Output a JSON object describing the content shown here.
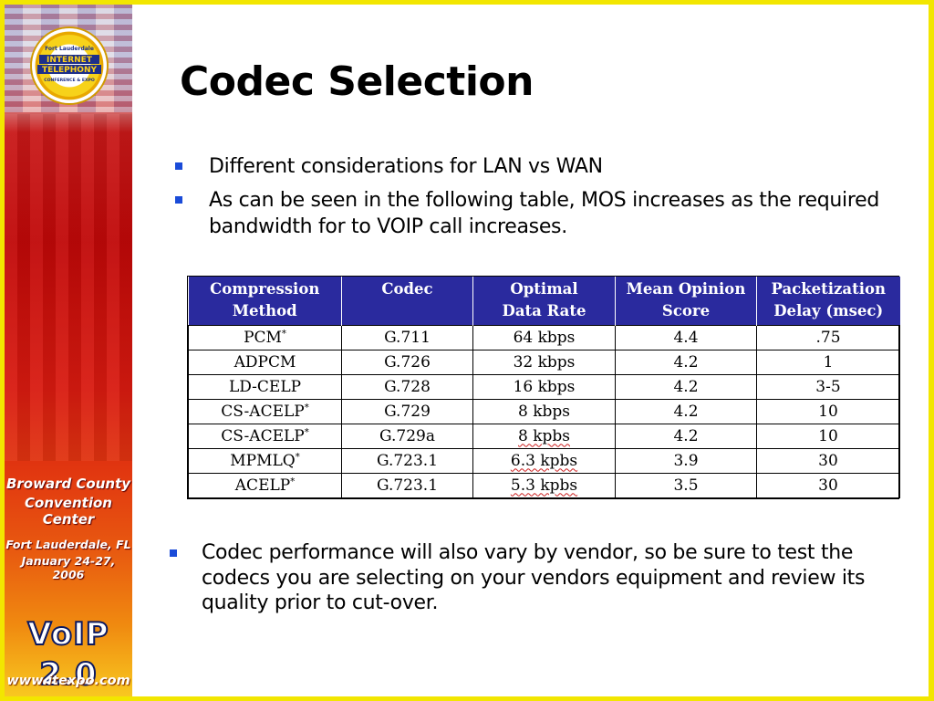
{
  "sidebar": {
    "badge": {
      "line1": "Fort Lauderdale",
      "line2": "INTERNET",
      "line3": "TELEPHONY",
      "line4": "CONFERENCE & EXPO"
    },
    "venue_line1": "Broward County",
    "venue_line2": "Convention Center",
    "city": "Fort Lauderdale, FL",
    "dates": "January 24-27, 2006",
    "logo_main": "VoIP",
    "logo_version": "2.0",
    "website": "www.itexpo.com"
  },
  "slide": {
    "title": "Codec Selection",
    "bullets_top": [
      "Different considerations for LAN vs WAN",
      "As can be seen in the following table, MOS increases as the required bandwidth for to VOIP call increases."
    ],
    "bullets_bottom": [
      "Codec performance will also vary by vendor, so be sure to test the codecs you are selecting on your vendors equipment and review its quality prior to cut-over."
    ]
  },
  "table": {
    "headers": [
      [
        "Compression",
        "Method"
      ],
      [
        "Codec",
        ""
      ],
      [
        "Optimal",
        "Data Rate"
      ],
      [
        "Mean Opinion",
        "Score"
      ],
      [
        "Packetization",
        "Delay (msec)"
      ]
    ],
    "rows": [
      {
        "method": "PCM",
        "mark": "*",
        "codec": "G.711",
        "rate": "64 kbps",
        "mos": "4.4",
        "delay": ".75"
      },
      {
        "method": "ADPCM",
        "mark": "",
        "codec": "G.726",
        "rate": "32 kbps",
        "mos": "4.2",
        "delay": "1"
      },
      {
        "method": "LD-CELP",
        "mark": "",
        "codec": "G.728",
        "rate": "16 kbps",
        "mos": "4.2",
        "delay": "3-5"
      },
      {
        "method": "CS-ACELP",
        "mark": "*",
        "codec": "G.729",
        "rate": "8 kbps",
        "mos": "4.2",
        "delay": "10"
      },
      {
        "method": "CS-ACELP",
        "mark": "*",
        "codec": "G.729a",
        "rate": "8 kpbs",
        "mos": "4.2",
        "delay": "10"
      },
      {
        "method": "MPMLQ",
        "mark": "*",
        "codec": "G.723.1",
        "rate": "6.3 kpbs",
        "mos": "3.9",
        "delay": "30"
      },
      {
        "method": "ACELP",
        "mark": "*",
        "codec": "G.723.1",
        "rate": "5.3 kpbs",
        "mos": "3.5",
        "delay": "30"
      }
    ]
  },
  "colors": {
    "frame": "#f2e600",
    "header_bg": "#2a2a9e",
    "bullet": "#1a4bd8"
  },
  "icons": [
    "square-bullet-icon"
  ]
}
